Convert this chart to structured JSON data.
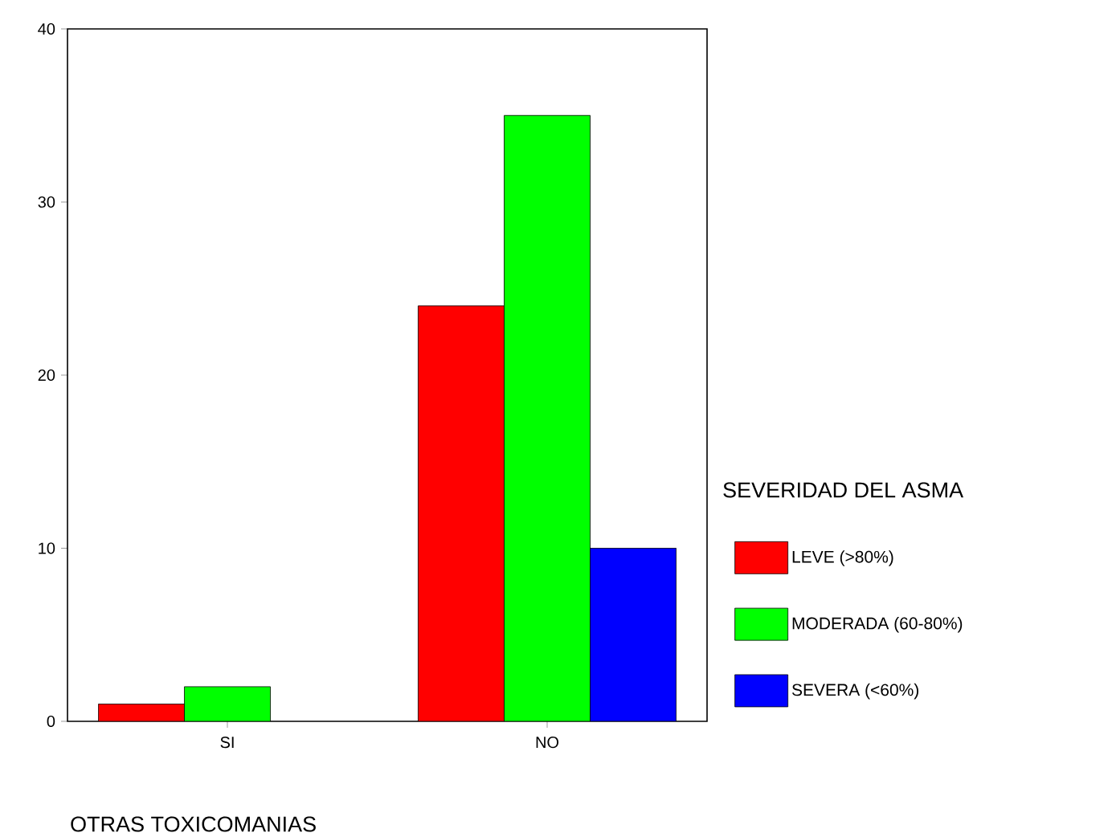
{
  "chart_data": {
    "type": "bar",
    "xlabel": "OTRAS TOXICOMANIAS",
    "legend_title": "SEVERIDAD DEL ASMA",
    "categories": [
      "SI",
      "NO"
    ],
    "series": [
      {
        "name": "LEVE (>80%)",
        "color": "#ff0000",
        "values": [
          1,
          24
        ]
      },
      {
        "name": "MODERADA (60-80%)",
        "color": "#00ff00",
        "values": [
          2,
          35
        ]
      },
      {
        "name": "SEVERA (<60%)",
        "color": "#0000ff",
        "values": [
          null,
          10
        ]
      }
    ],
    "ylim": [
      0,
      40
    ],
    "yticks": [
      0,
      10,
      20,
      30,
      40
    ],
    "legend": "right",
    "grid": false
  }
}
